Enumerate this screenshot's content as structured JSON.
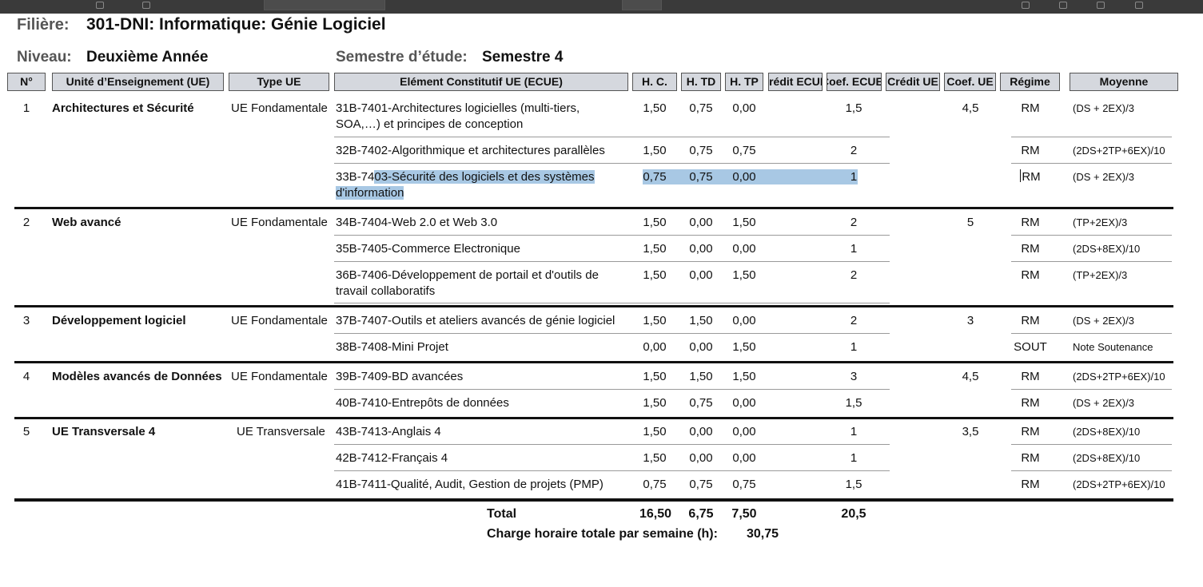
{
  "header": {
    "filiere_label": "Filière:",
    "filiere_value": "301-DNI: Informatique: Génie Logiciel",
    "niveau_label": "Niveau:",
    "niveau_value": "Deuxième Année",
    "semestre_label": "Semestre d’étude:",
    "semestre_value": "Semestre 4"
  },
  "columns": [
    "N°",
    "Unité d’Enseignement (UE)",
    "Type UE",
    "Elément Constitutif UE (ECUE)",
    "H. C.",
    "H. TD",
    "H. TP",
    "Crédit ECUE",
    "Coef. ECUE",
    "Crédit UE",
    "Coef. UE",
    "Régime",
    "Moyenne"
  ],
  "groups": [
    {
      "num": "1",
      "ue": "Architectures et Sécurité",
      "type": "UE Fondamentale",
      "coef_ue": "4,5",
      "rows": [
        {
          "ecue": [
            "31B-7401-Architectures logicielles (multi-tiers,",
            "SOA,…) et principes de conception"
          ],
          "hc": "1,50",
          "htd": "0,75",
          "htp": "0,00",
          "coef": "1,5",
          "regime": "RM",
          "moyenne": "(DS + 2EX)/3"
        },
        {
          "ecue": [
            "32B-7402-Algorithmique et architectures parallèles"
          ],
          "hc": "1,50",
          "htd": "0,75",
          "htp": "0,75",
          "coef": "2",
          "regime": "RM",
          "moyenne": "(2DS+2TP+6EX)/10"
        },
        {
          "ecue_a": "33B-74",
          "ecue_b": "03-Sécurité des logiciels et des systèmes",
          "ecue_c": "d'information",
          "hc": "0,75",
          "htd": "0,75",
          "htp": "0,00",
          "coef": "1",
          "regime": "RM",
          "moyenne": "(DS + 2EX)/3"
        }
      ]
    },
    {
      "num": "2",
      "ue": "Web avancé",
      "type": "UE Fondamentale",
      "coef_ue": "5",
      "rows": [
        {
          "ecue": [
            "34B-7404-Web 2.0 et Web 3.0"
          ],
          "hc": "1,50",
          "htd": "0,00",
          "htp": "1,50",
          "coef": "2",
          "regime": "RM",
          "moyenne": "(TP+2EX)/3"
        },
        {
          "ecue": [
            "35B-7405-Commerce Electronique"
          ],
          "hc": "1,50",
          "htd": "0,00",
          "htp": "0,00",
          "coef": "1",
          "regime": "RM",
          "moyenne": "(2DS+8EX)/10"
        },
        {
          "ecue": [
            "36B-7406-Développement de portail et d'outils de",
            "travail collaboratifs"
          ],
          "hc": "1,50",
          "htd": "0,00",
          "htp": "1,50",
          "coef": "2",
          "regime": "RM",
          "moyenne": "(TP+2EX)/3"
        }
      ]
    },
    {
      "num": "3",
      "ue": "Développement logiciel",
      "type": "UE Fondamentale",
      "coef_ue": "3",
      "rows": [
        {
          "ecue": [
            "37B-7407-Outils et ateliers avancés de génie logiciel"
          ],
          "hc": "1,50",
          "htd": "1,50",
          "htp": "0,00",
          "coef": "2",
          "regime": "RM",
          "moyenne": "(DS + 2EX)/3"
        },
        {
          "ecue": [
            "38B-7408-Mini Projet"
          ],
          "hc": "0,00",
          "htd": "0,00",
          "htp": "1,50",
          "coef": "1",
          "regime": "SOUT",
          "moyenne": "Note Soutenance"
        }
      ]
    },
    {
      "num": "4",
      "ue": "Modèles avancés de Données",
      "type": "UE Fondamentale",
      "coef_ue": "4,5",
      "rows": [
        {
          "ecue": [
            "39B-7409-BD avancées"
          ],
          "hc": "1,50",
          "htd": "1,50",
          "htp": "1,50",
          "coef": "3",
          "regime": "RM",
          "moyenne": "(2DS+2TP+6EX)/10"
        },
        {
          "ecue": [
            "40B-7410-Entrepôts de données"
          ],
          "hc": "1,50",
          "htd": "0,75",
          "htp": "0,00",
          "coef": "1,5",
          "regime": "RM",
          "moyenne": "(DS + 2EX)/3"
        }
      ]
    },
    {
      "num": "5",
      "ue": "UE Transversale 4",
      "type": "UE Transversale",
      "coef_ue": "3,5",
      "rows": [
        {
          "ecue": [
            "43B-7413-Anglais 4"
          ],
          "hc": "1,50",
          "htd": "0,00",
          "htp": "0,00",
          "coef": "1",
          "regime": "RM",
          "moyenne": "(2DS+8EX)/10"
        },
        {
          "ecue": [
            "42B-7412-Français 4"
          ],
          "hc": "1,50",
          "htd": "0,00",
          "htp": "0,00",
          "coef": "1",
          "regime": "RM",
          "moyenne": "(2DS+8EX)/10"
        },
        {
          "ecue": [
            "41B-7411-Qualité, Audit, Gestion de projets (PMP)"
          ],
          "hc": "0,75",
          "htd": "0,75",
          "htp": "0,75",
          "coef": "1,5",
          "regime": "RM",
          "moyenne": "(2DS+2TP+6EX)/10"
        }
      ]
    }
  ],
  "totals": {
    "label": "Total",
    "hc": "16,50",
    "htd": "6,75",
    "htp": "7,50",
    "coef": "20,5",
    "charge_label": "Charge horaire totale par semaine (h):",
    "charge_value": "30,75"
  }
}
